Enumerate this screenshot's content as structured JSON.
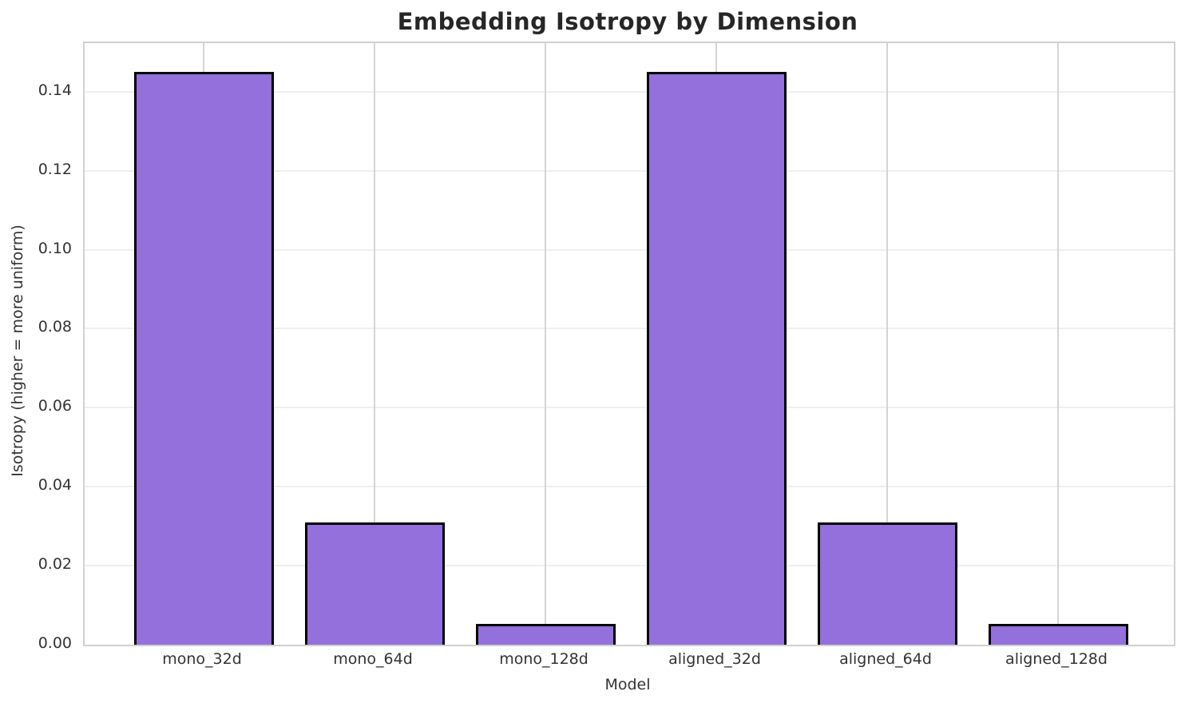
{
  "chart_data": {
    "type": "bar",
    "title": "Embedding Isotropy by Dimension",
    "xlabel": "Model",
    "ylabel": "Isotropy (higher = more uniform)",
    "categories": [
      "mono_32d",
      "mono_64d",
      "mono_128d",
      "aligned_32d",
      "aligned_64d",
      "aligned_128d"
    ],
    "values": [
      0.145,
      0.031,
      0.0053,
      0.145,
      0.031,
      0.0053
    ],
    "ylim": [
      0,
      0.1523
    ],
    "yticks": [
      0.0,
      0.02,
      0.04,
      0.06,
      0.08,
      0.1,
      0.12,
      0.14
    ],
    "ytick_labels": [
      "0.00",
      "0.02",
      "0.04",
      "0.06",
      "0.08",
      "0.10",
      "0.12",
      "0.14"
    ],
    "grid": "both",
    "legend": "none",
    "bar_color": "#9370DB",
    "bar_edge_color": "#000000",
    "grid_color_horizontal": "#efefef",
    "grid_color_vertical": "#d4d4d4",
    "spine_color": "#d0d0d0",
    "text_color": "#333333",
    "title_color": "#262626"
  }
}
